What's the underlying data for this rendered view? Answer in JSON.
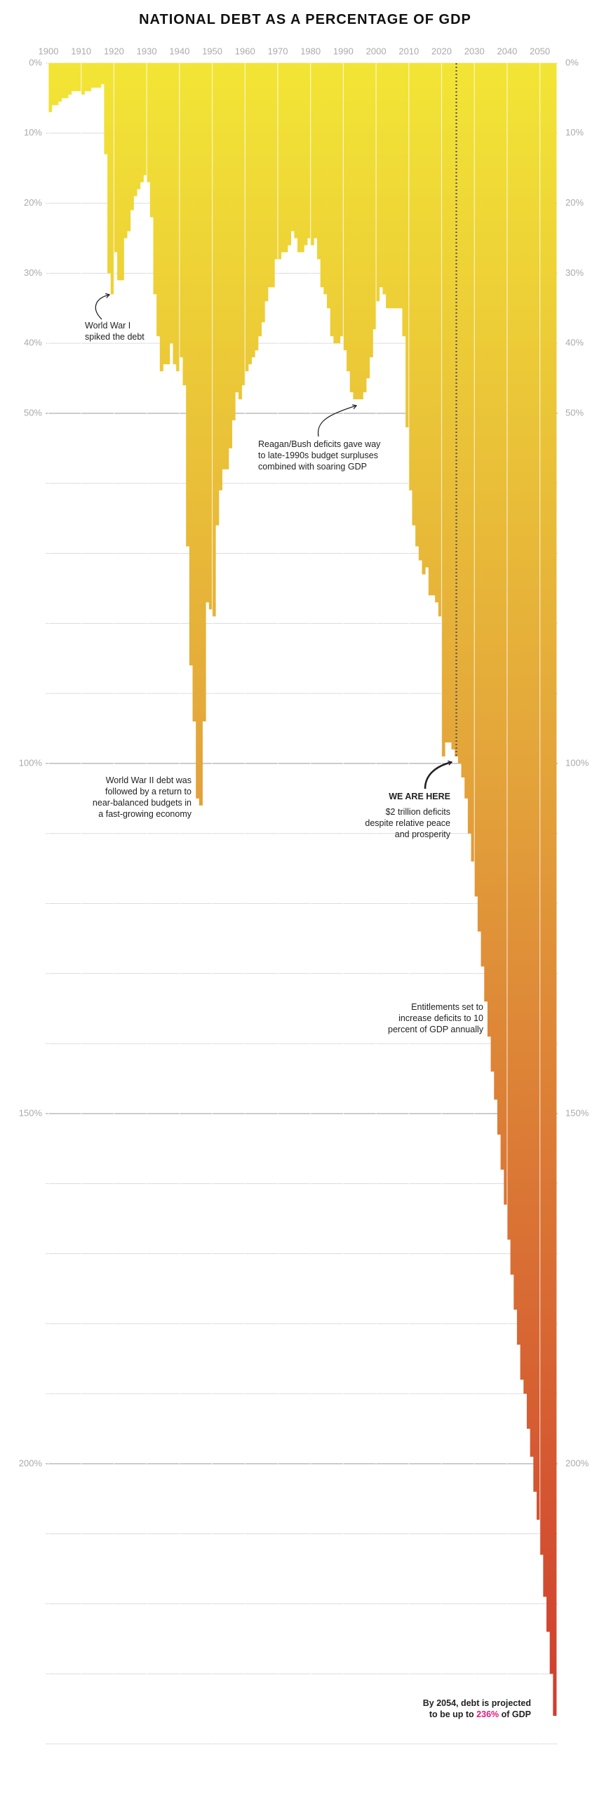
{
  "chart_data": {
    "type": "bar",
    "title": "NATIONAL DEBT AS A PERCENTAGE OF GDP",
    "x": [
      1900,
      1901,
      1902,
      1903,
      1904,
      1905,
      1906,
      1907,
      1908,
      1909,
      1910,
      1911,
      1912,
      1913,
      1914,
      1915,
      1916,
      1917,
      1918,
      1919,
      1920,
      1921,
      1922,
      1923,
      1924,
      1925,
      1926,
      1927,
      1928,
      1929,
      1930,
      1931,
      1932,
      1933,
      1934,
      1935,
      1936,
      1937,
      1938,
      1939,
      1940,
      1941,
      1942,
      1943,
      1944,
      1945,
      1946,
      1947,
      1948,
      1949,
      1950,
      1951,
      1952,
      1953,
      1954,
      1955,
      1956,
      1957,
      1958,
      1959,
      1960,
      1961,
      1962,
      1963,
      1964,
      1965,
      1966,
      1967,
      1968,
      1969,
      1970,
      1971,
      1972,
      1973,
      1974,
      1975,
      1976,
      1977,
      1978,
      1979,
      1980,
      1981,
      1982,
      1983,
      1984,
      1985,
      1986,
      1987,
      1988,
      1989,
      1990,
      1991,
      1992,
      1993,
      1994,
      1995,
      1996,
      1997,
      1998,
      1999,
      2000,
      2001,
      2002,
      2003,
      2004,
      2005,
      2006,
      2007,
      2008,
      2009,
      2010,
      2011,
      2012,
      2013,
      2014,
      2015,
      2016,
      2017,
      2018,
      2019,
      2020,
      2021,
      2022,
      2023,
      2024,
      2025,
      2026,
      2027,
      2028,
      2029,
      2030,
      2031,
      2032,
      2033,
      2034,
      2035,
      2036,
      2037,
      2038,
      2039,
      2040,
      2041,
      2042,
      2043,
      2044,
      2045,
      2046,
      2047,
      2048,
      2049,
      2050,
      2051,
      2052,
      2053,
      2054
    ],
    "values": [
      7,
      6,
      6,
      5.5,
      5,
      5,
      4.5,
      4,
      4,
      4,
      4.5,
      4,
      4,
      3.5,
      3.5,
      3.5,
      3,
      13,
      30,
      33,
      27,
      31,
      31,
      25,
      24,
      21,
      19,
      18,
      17,
      16,
      17,
      22,
      33,
      39,
      44,
      43,
      43,
      40,
      43,
      44,
      42,
      46,
      69,
      86,
      94,
      105,
      106,
      94,
      77,
      78,
      79,
      66,
      61,
      58,
      58,
      55,
      51,
      47,
      48,
      46,
      44,
      43,
      42,
      41,
      39,
      37,
      34,
      32,
      32,
      28,
      28,
      27,
      27,
      26,
      24,
      25,
      27,
      27,
      26,
      25,
      26,
      25,
      28,
      32,
      33,
      35,
      39,
      40,
      40,
      39,
      41,
      44,
      47,
      48,
      48,
      48,
      47,
      45,
      42,
      38,
      34,
      32,
      33,
      35,
      35,
      35,
      35,
      35,
      39,
      52,
      61,
      66,
      69,
      71,
      73,
      72,
      76,
      76,
      77,
      79,
      99,
      97,
      97,
      98,
      99,
      100,
      102,
      105,
      110,
      114,
      119,
      124,
      129,
      134,
      139,
      144,
      148,
      153,
      158,
      163,
      168,
      173,
      178,
      183,
      188,
      190,
      195,
      199,
      204,
      208,
      213,
      219,
      224,
      230,
      236
    ],
    "xlim": [
      1900,
      2055
    ],
    "xticks": [
      1900,
      1910,
      1920,
      1930,
      1940,
      1950,
      1960,
      1970,
      1980,
      1990,
      2000,
      2010,
      2020,
      2030,
      2040,
      2050
    ],
    "ylim": [
      0,
      240
    ],
    "yticks": [
      {
        "value": 0,
        "label": "0%"
      },
      {
        "value": 10,
        "label": "10%"
      },
      {
        "value": 20,
        "label": "20%"
      },
      {
        "value": 30,
        "label": "30%"
      },
      {
        "value": 40,
        "label": "40%"
      },
      {
        "value": 50,
        "label": "50%"
      },
      {
        "value": 100,
        "label": "100%"
      },
      {
        "value": 150,
        "label": "150%"
      },
      {
        "value": 200,
        "label": "200%"
      }
    ],
    "minor_grid": [
      60,
      70,
      80,
      90,
      110,
      120,
      130,
      140,
      160,
      170,
      180,
      190,
      210,
      220,
      230,
      240
    ],
    "y_inverted": true,
    "grid": true,
    "colors": [
      "#f2e535",
      "#e3a43a",
      "#cf3a2e"
    ],
    "here_line": 2024,
    "annotations": [
      {
        "lines": [
          "World War I",
          "spiked the debt"
        ]
      },
      {
        "lines": [
          "Reagan/Bush deficits gave way",
          "to late-1990s budget surpluses",
          "combined with soaring GDP"
        ]
      },
      {
        "lines": [
          "World War II debt was",
          "followed by a return to",
          "near-balanced budgets in",
          "a fast-growing economy"
        ]
      },
      {
        "lines": [
          "WE ARE HERE"
        ]
      },
      {
        "lines": [
          "$2 trillion deficits",
          "despite relative peace",
          "and prosperity"
        ]
      },
      {
        "lines": [
          "Entitlements set to",
          "increase deficits to 10",
          "percent of GDP annually"
        ]
      },
      {
        "lines": [
          "By 2054, debt is projected",
          [
            "to be up to ",
            "236%",
            " of GDP"
          ]
        ],
        "highlight": "#e0197d"
      }
    ]
  }
}
